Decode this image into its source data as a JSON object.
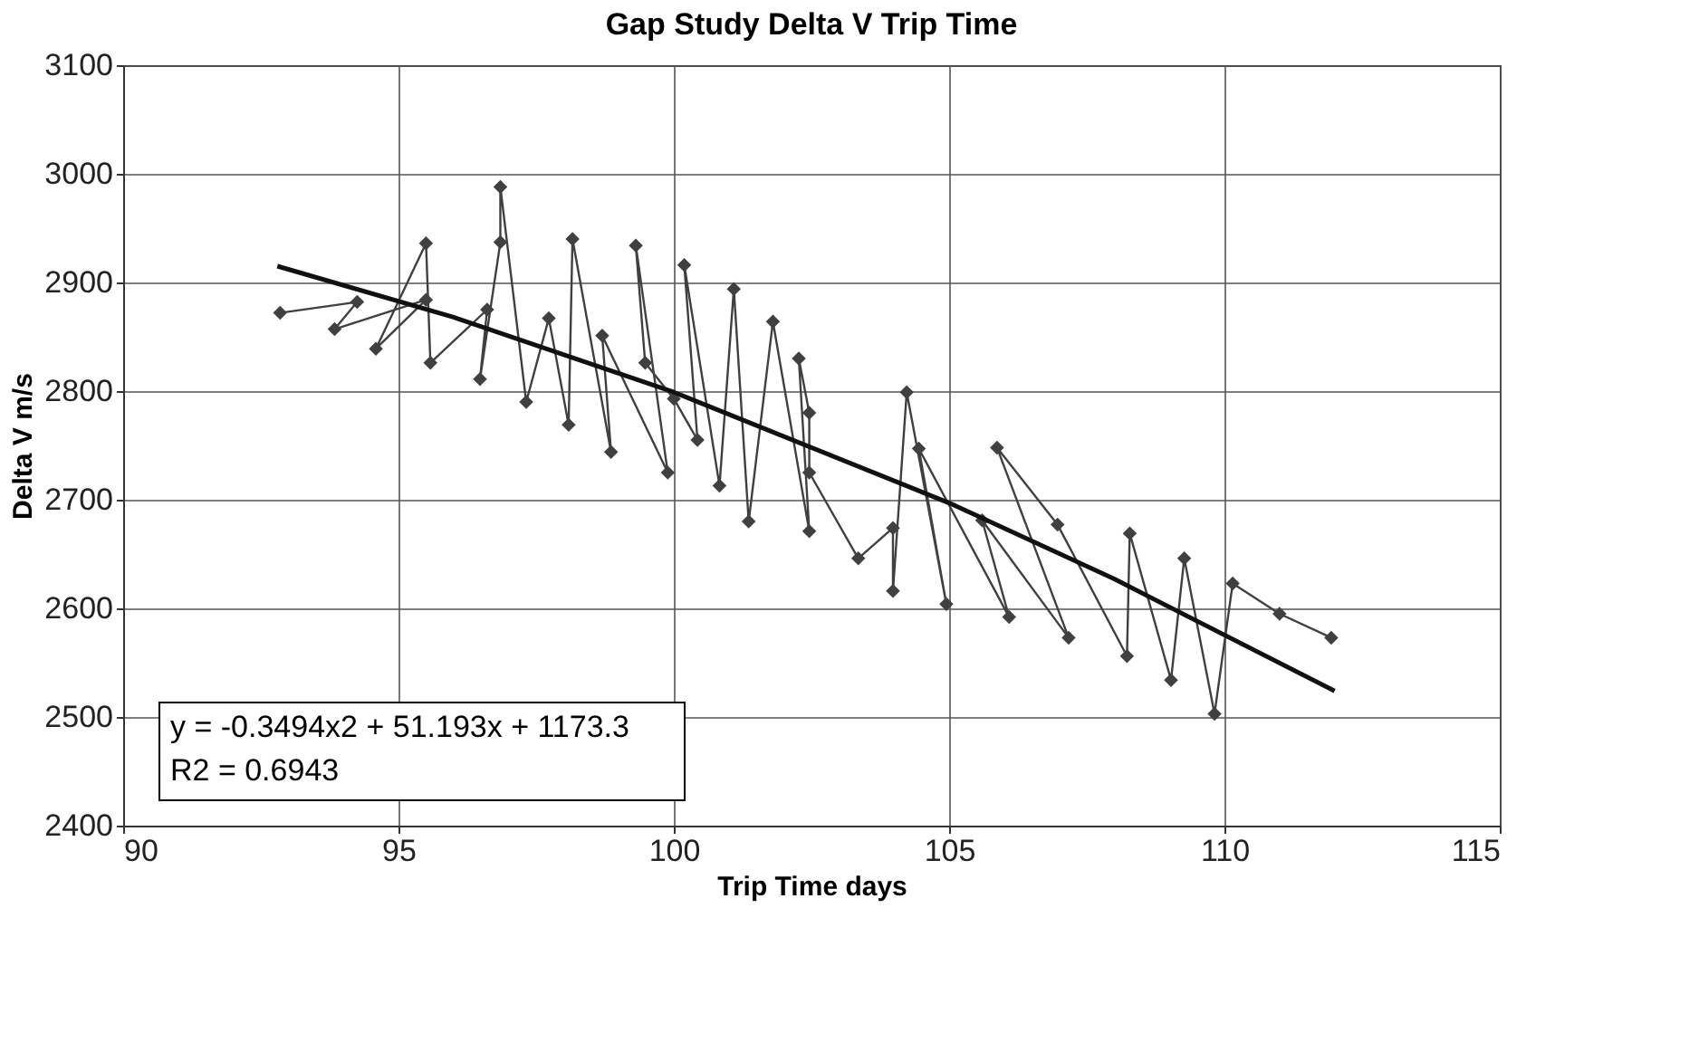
{
  "chart_data": {
    "type": "line",
    "title": "Gap Study Delta V Trip Time",
    "xlabel": "Trip Time days",
    "ylabel": "Delta V m/s",
    "xlim": [
      90,
      115
    ],
    "xticks": [
      90,
      95,
      100,
      105,
      110,
      115
    ],
    "ylim": [
      2400,
      3100
    ],
    "yticks": [
      2400,
      2500,
      2600,
      2700,
      2800,
      2900,
      3000,
      3100
    ],
    "grid": true,
    "marker": "diamond",
    "line_style": "solid",
    "annotations": [
      "y = -0.3494x2 + 51.193x + 1173.3",
      "R2 = 0.6943"
    ],
    "series": [
      {
        "color": "#404040",
        "x": [
          92.85,
          94.25,
          93.84,
          95.5,
          94.59,
          95.5,
          95.58,
          96.61,
          96.48,
          96.85,
          96.85,
          97.32,
          97.73,
          98.09,
          98.16,
          98.86,
          98.7,
          99.89,
          99.31,
          99.48,
          100.0,
          100.43,
          100.19,
          100.83,
          101.09,
          101.36,
          101.8,
          102.46,
          102.27,
          102.46,
          102.46,
          103.35,
          103.98,
          103.98,
          104.23,
          104.95,
          104.45,
          106.09,
          105.6,
          107.17,
          105.87,
          106.97,
          108.23,
          108.28,
          109.03,
          109.27,
          109.82,
          110.15,
          111.0,
          111.94
        ],
        "values": [
          2872,
          2882,
          2857,
          2884,
          2839,
          2936,
          2826,
          2875,
          2811,
          2937,
          2988,
          2790,
          2867,
          2769,
          2940,
          2744,
          2851,
          2725,
          2934,
          2826,
          2793,
          2755,
          2916,
          2713,
          2894,
          2680,
          2864,
          2671,
          2830,
          2780,
          2725,
          2646,
          2674,
          2616,
          2799,
          2604,
          2747,
          2592,
          2681,
          2573,
          2748,
          2677,
          2556,
          2669,
          2534,
          2646,
          2503,
          2623,
          2595,
          2573
        ]
      },
      {
        "marker": "none",
        "color": "#111111",
        "x": [
          92.8,
          96,
          100,
          105,
          108,
          112
        ],
        "values": [
          2915,
          2868,
          2799,
          2697,
          2627,
          2524
        ]
      }
    ]
  }
}
